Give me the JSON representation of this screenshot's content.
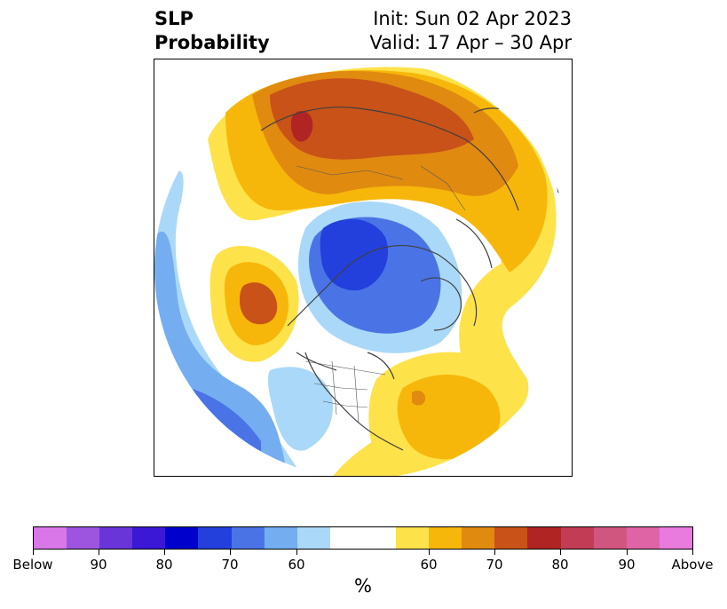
{
  "title": {
    "left_line1": "SLP",
    "left_line2": "Probability",
    "right_line1": "Init: Sun 02 Apr 2023",
    "right_line2": "Valid: 17 Apr – 30 Apr"
  },
  "colorbar": {
    "unit": "%",
    "colors": [
      "#d977e8",
      "#9d55e0",
      "#6a35d8",
      "#3a18d6",
      "#0000cc",
      "#2340dc",
      "#4a74e6",
      "#74aef0",
      "#aad8f8",
      "#ffffff",
      "#fee24a",
      "#f6b70a",
      "#e08a10",
      "#c85218",
      "#b02424",
      "#c33c55",
      "#d0557f",
      "#de64a6",
      "#e87bdd"
    ],
    "tick_labels": [
      "Below",
      "90",
      "80",
      "70",
      "60",
      "60",
      "70",
      "80",
      "90",
      "Above"
    ]
  },
  "map": {
    "projection": "north-polar-stereographic",
    "land_colors": {
      "blue_light": "#aad8f8",
      "blue_mid": "#74aef0",
      "blue": "#4a74e6",
      "blue_deep": "#2340dc",
      "yellow": "#fee24a",
      "gold": "#f6b70a",
      "orange": "#e08a10",
      "rust": "#c85218",
      "red": "#b02424"
    }
  }
}
